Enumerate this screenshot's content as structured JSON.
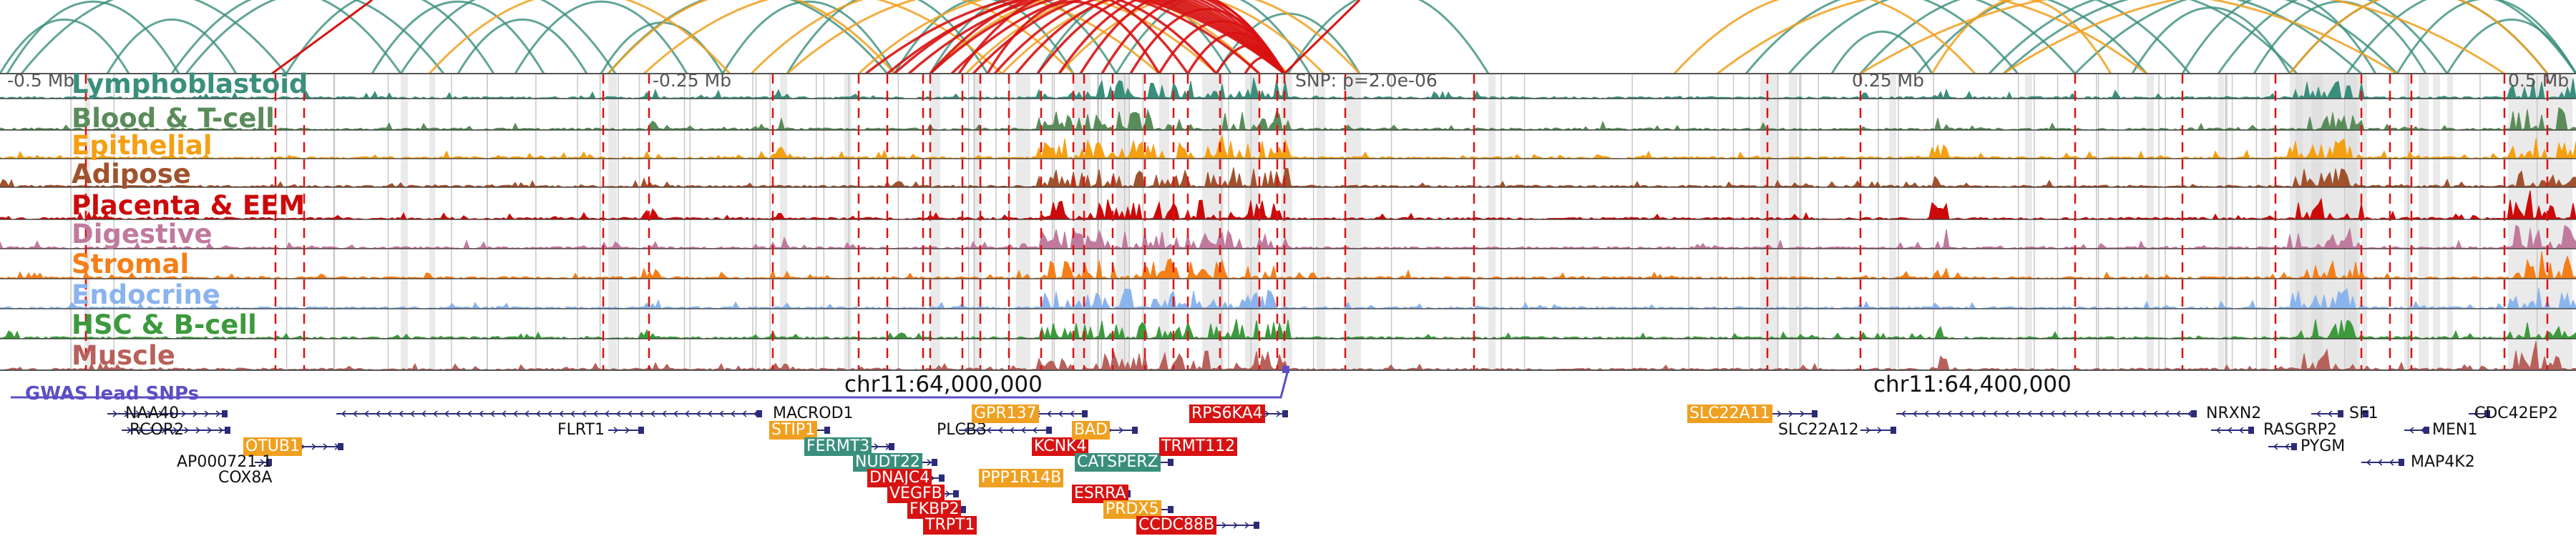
{
  "colors": {
    "loop_primary": "#d81212",
    "loop_teal": "#3a8f7c",
    "loop_orange": "#f0a020",
    "snp_line": "#e01010",
    "gwas": "#5b4fc4",
    "gene_track": "#2b2b7a",
    "shade": "#d9d9d9"
  },
  "axis": {
    "ticks": [
      "-0.5 Mb",
      "-0.25 Mb",
      "SNP: p=2.0e-06",
      "0.25 Mb",
      "0.5 Mb"
    ]
  },
  "tracks": [
    {
      "label": "Lymphoblastoid",
      "color": "#3a8f7c"
    },
    {
      "label": "Blood & T-cell",
      "color": "#5a8c5a"
    },
    {
      "label": "Epithelial",
      "color": "#f5a012"
    },
    {
      "label": "Adipose",
      "color": "#a0522d"
    },
    {
      "label": "Placenta & EEM",
      "color": "#cc0a0a"
    },
    {
      "label": "Digestive",
      "color": "#c07a9e"
    },
    {
      "label": "Stromal",
      "color": "#f47f18"
    },
    {
      "label": "Endocrine",
      "color": "#8ab4ee"
    },
    {
      "label": "HSC & B-cell",
      "color": "#3c9a3c"
    },
    {
      "label": "Muscle",
      "color": "#b8605a"
    }
  ],
  "locus": {
    "left": "chr11:64,000,000",
    "right": "chr11:64,400,000"
  },
  "gwas_label": "GWAS lead SNPs",
  "genes": [
    {
      "name": "NAA40",
      "hl": false
    },
    {
      "name": "RCOR2",
      "hl": false
    },
    {
      "name": "OTUB1",
      "hl": true,
      "color": "#f0a020"
    },
    {
      "name": "AP000721.1",
      "hl": false
    },
    {
      "name": "COX8A",
      "hl": false
    },
    {
      "name": "FLRT1",
      "hl": false
    },
    {
      "name": "MACROD1",
      "hl": false
    },
    {
      "name": "STIP1",
      "hl": true,
      "color": "#f0a020"
    },
    {
      "name": "FERMT3",
      "hl": true,
      "color": "#3a8f7c"
    },
    {
      "name": "NUDT22",
      "hl": true,
      "color": "#3a8f7c"
    },
    {
      "name": "DNAJC4",
      "hl": true,
      "color": "#d81212"
    },
    {
      "name": "VEGFB",
      "hl": true,
      "color": "#d81212"
    },
    {
      "name": "FKBP2",
      "hl": true,
      "color": "#d81212"
    },
    {
      "name": "TRPT1",
      "hl": true,
      "color": "#d81212"
    },
    {
      "name": "PLCB3",
      "hl": false
    },
    {
      "name": "PPP1R14B",
      "hl": true,
      "color": "#f0a020"
    },
    {
      "name": "GPR137",
      "hl": true,
      "color": "#f0a020"
    },
    {
      "name": "KCNK4",
      "hl": true,
      "color": "#d81212"
    },
    {
      "name": "BAD",
      "hl": true,
      "color": "#f0a020"
    },
    {
      "name": "CATSPERZ",
      "hl": true,
      "color": "#3a8f7c"
    },
    {
      "name": "ESRRA",
      "hl": true,
      "color": "#d81212"
    },
    {
      "name": "PRDX5",
      "hl": true,
      "color": "#f0a020"
    },
    {
      "name": "CCDC88B",
      "hl": true,
      "color": "#d81212"
    },
    {
      "name": "RPS6KA4",
      "hl": true,
      "color": "#d81212"
    },
    {
      "name": "TRMT112",
      "hl": true,
      "color": "#d81212"
    },
    {
      "name": "SLC22A11",
      "hl": true,
      "color": "#f0a020"
    },
    {
      "name": "SLC22A12",
      "hl": false
    },
    {
      "name": "NRXN2",
      "hl": false
    },
    {
      "name": "RASGRP2",
      "hl": false
    },
    {
      "name": "PYGM",
      "hl": false
    },
    {
      "name": "SF1",
      "hl": false
    },
    {
      "name": "MEN1",
      "hl": false
    },
    {
      "name": "CDC42EP2",
      "hl": false
    },
    {
      "name": "MAP4K2",
      "hl": false
    }
  ]
}
